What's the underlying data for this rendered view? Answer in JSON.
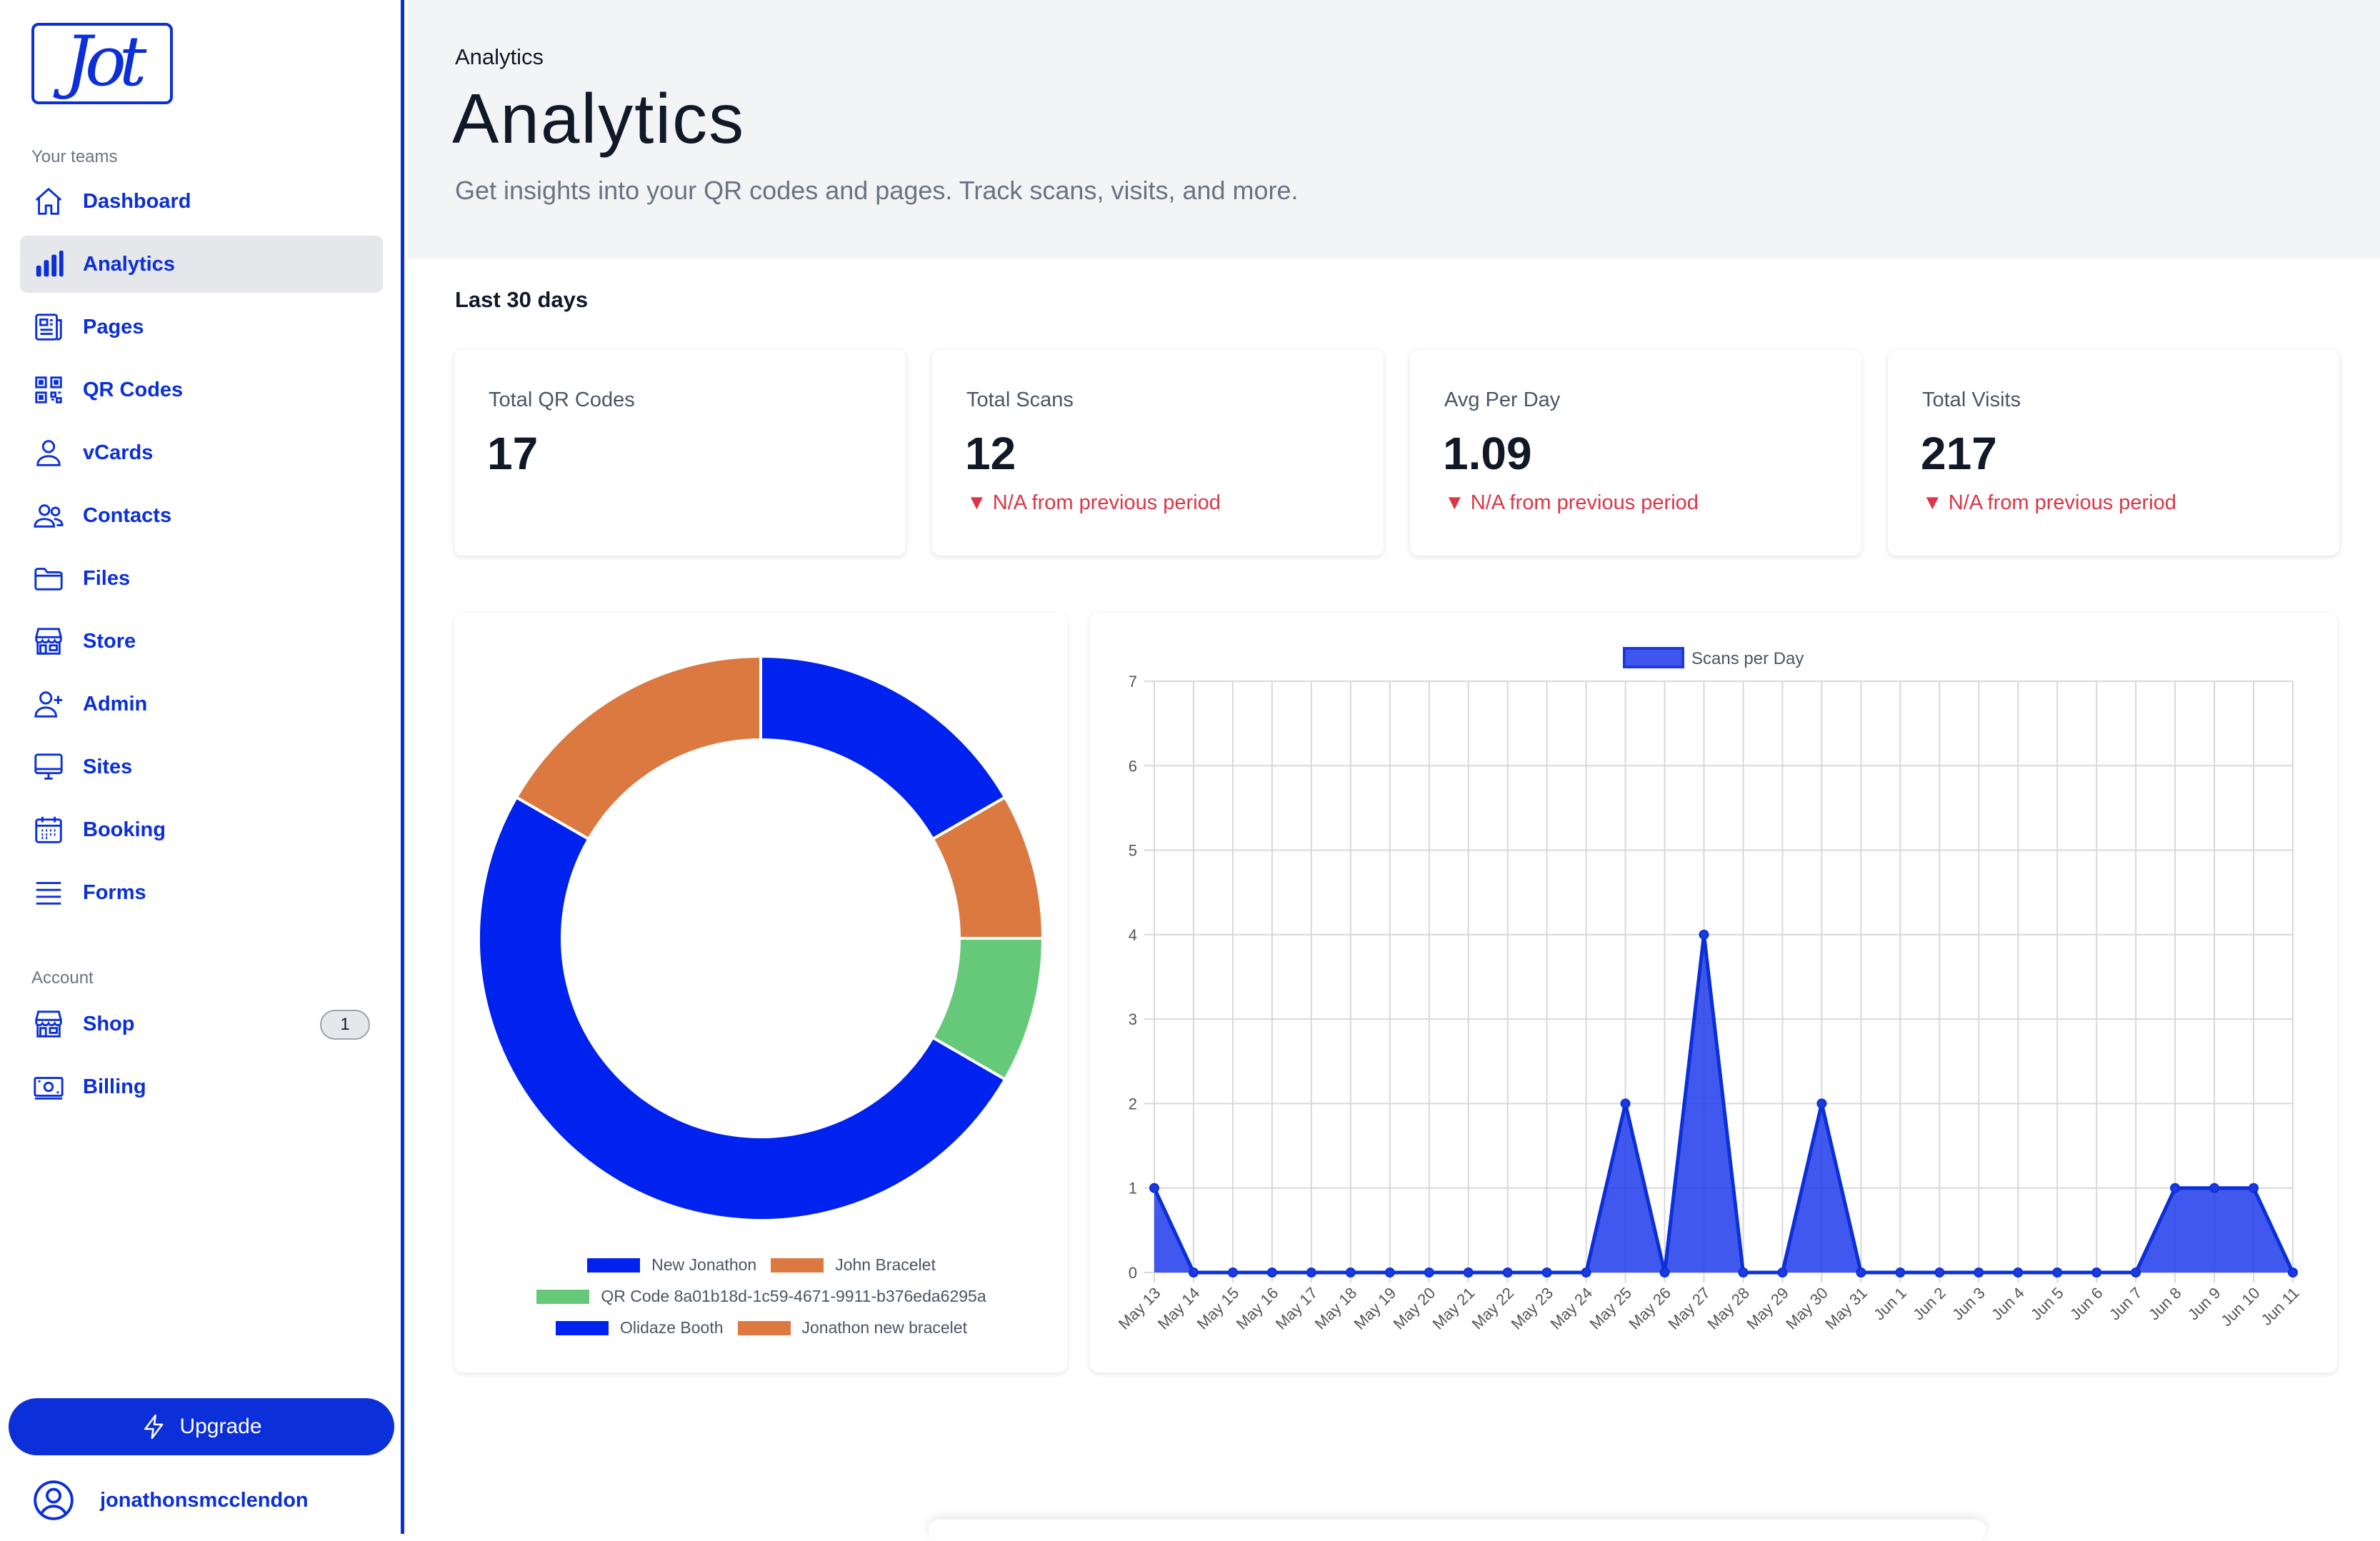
{
  "sidebar": {
    "logo_text": "Jot",
    "teams_label": "Your teams",
    "account_label": "Account",
    "items": [
      {
        "label": "Dashboard",
        "icon": "home-icon"
      },
      {
        "label": "Analytics",
        "icon": "bar-chart-icon"
      },
      {
        "label": "Pages",
        "icon": "newspaper-icon"
      },
      {
        "label": "QR Codes",
        "icon": "qr-code-icon"
      },
      {
        "label": "vCards",
        "icon": "user-icon"
      },
      {
        "label": "Contacts",
        "icon": "users-icon"
      },
      {
        "label": "Files",
        "icon": "folder-icon"
      },
      {
        "label": "Store",
        "icon": "storefront-icon"
      },
      {
        "label": "Admin",
        "icon": "user-plus-icon"
      },
      {
        "label": "Sites",
        "icon": "monitor-icon"
      },
      {
        "label": "Booking",
        "icon": "calendar-icon"
      },
      {
        "label": "Forms",
        "icon": "list-icon"
      }
    ],
    "account_items": [
      {
        "label": "Shop",
        "icon": "storefront-icon",
        "badge": "1"
      },
      {
        "label": "Billing",
        "icon": "banknote-icon"
      }
    ],
    "upgrade_label": "Upgrade",
    "username": "jonathonsmcclendon"
  },
  "header": {
    "breadcrumb": "Analytics",
    "title": "Analytics",
    "subtitle": "Get insights into your QR codes and pages. Track scans, visits, and more."
  },
  "period_label": "Last 30 days",
  "stats": [
    {
      "label": "Total QR Codes",
      "value": "17",
      "change": ""
    },
    {
      "label": "Total Scans",
      "value": "12",
      "change": "▼ N/A from previous period"
    },
    {
      "label": "Avg Per Day",
      "value": "1.09",
      "change": "▼ N/A from previous period"
    },
    {
      "label": "Total Visits",
      "value": "217",
      "change": "▼ N/A from previous period"
    }
  ],
  "colors": {
    "accent": "#0b2fd8",
    "orange": "#db7940",
    "green": "#66c97a",
    "negative": "#dc3545"
  },
  "chart_data": [
    {
      "type": "pie",
      "variant": "doughnut",
      "labels": [
        "New Jonathon",
        "John Bracelet",
        "QR Code 8a01b18d-1c59-4671-9911-b376eda6295a",
        "Olidaze Booth",
        "Jonathon new bracelet"
      ],
      "values": [
        2,
        1,
        1,
        6,
        2
      ],
      "colors": [
        "#0022ee",
        "#db7940",
        "#66c97a",
        "#0022ee",
        "#db7940"
      ],
      "legend": "bottom"
    },
    {
      "type": "area",
      "x": [
        "May 13",
        "May 14",
        "May 15",
        "May 16",
        "May 17",
        "May 18",
        "May 19",
        "May 20",
        "May 21",
        "May 22",
        "May 23",
        "May 24",
        "May 25",
        "May 26",
        "May 27",
        "May 28",
        "May 29",
        "May 30",
        "May 31",
        "Jun 1",
        "Jun 2",
        "Jun 3",
        "Jun 4",
        "Jun 5",
        "Jun 6",
        "Jun 7",
        "Jun 8",
        "Jun 9",
        "Jun 10",
        "Jun 11"
      ],
      "series": [
        {
          "name": "Scans per Day",
          "values": [
            1,
            0,
            0,
            0,
            0,
            0,
            0,
            0,
            0,
            0,
            0,
            0,
            2,
            0,
            4,
            0,
            0,
            2,
            0,
            0,
            0,
            0,
            0,
            0,
            0,
            0,
            1,
            1,
            1,
            0
          ]
        }
      ],
      "ylim": [
        0,
        7
      ],
      "yticks": [
        0,
        1,
        2,
        3,
        4,
        5,
        6,
        7
      ],
      "grid": true,
      "legend": "top"
    }
  ]
}
